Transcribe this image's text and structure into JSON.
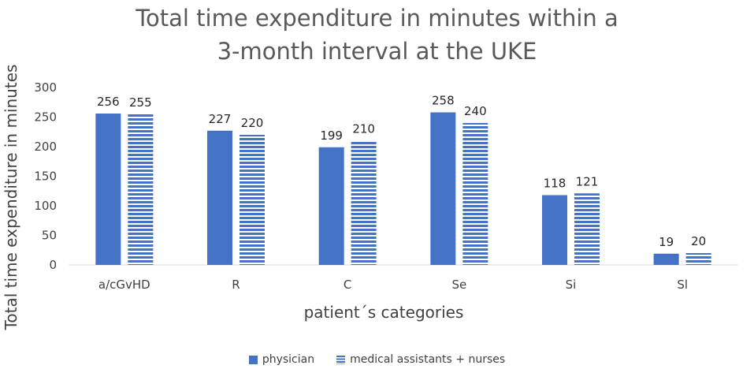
{
  "title_line1": "Total time expenditure in minutes within a",
  "title_line2": "3-month interval at the UKE",
  "chart_data": {
    "type": "bar",
    "categories": [
      "a/cGvHD",
      "R",
      "C",
      "Se",
      "Si",
      "Sl"
    ],
    "series": [
      {
        "name": "physician",
        "values": [
          256,
          227,
          199,
          258,
          118,
          19
        ],
        "pattern": "solid"
      },
      {
        "name": "medical assistants + nurses",
        "values": [
          255,
          220,
          210,
          240,
          121,
          20
        ],
        "pattern": "horizontal-stripes"
      }
    ],
    "xlabel": "patient´s categories",
    "ylabel": "Total time expenditure in minutes",
    "ylim": [
      0,
      300
    ],
    "yticks": [
      0,
      50,
      100,
      150,
      200,
      250,
      300
    ],
    "grid": false,
    "legend": "bottom",
    "color": "#4472C4"
  }
}
